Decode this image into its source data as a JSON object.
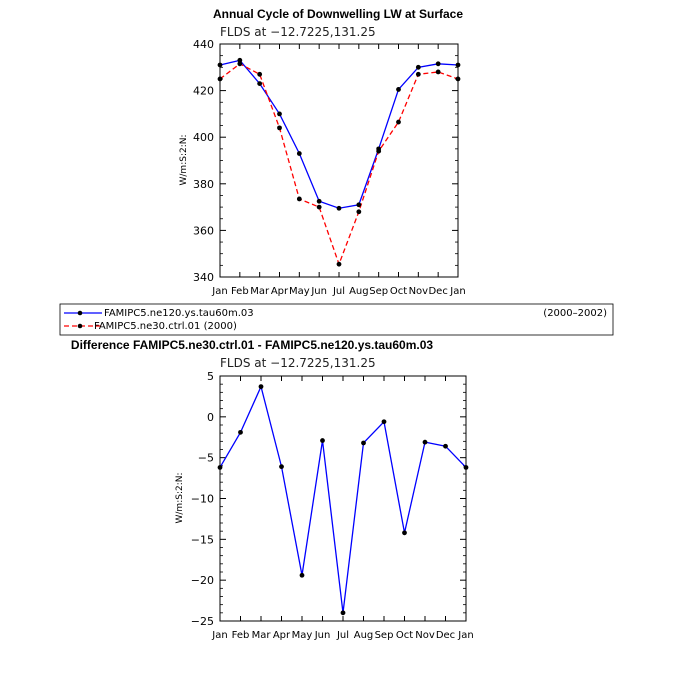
{
  "chart_data": [
    {
      "type": "line",
      "title": "Annual Cycle of Downwelling LW at Surface",
      "subtitle": "FLDS at −12.7225,131.25",
      "ylabel": "W/m:S:2:N:",
      "xlabel": "",
      "ylim": [
        340,
        440
      ],
      "yticks": [
        340,
        360,
        380,
        400,
        420,
        440
      ],
      "categories": [
        "Jan",
        "Feb",
        "Mar",
        "Apr",
        "May",
        "Jun",
        "Jul",
        "Aug",
        "Sep",
        "Oct",
        "Nov",
        "Dec",
        "Jan"
      ],
      "series": [
        {
          "name": "FAMIPC5.ne120.ys.tau60m.03",
          "color": "#0000ff",
          "dash": "solid",
          "values": [
            431,
            433,
            423,
            410,
            393,
            372.5,
            369.5,
            371,
            395,
            420.5,
            430,
            431.5,
            431
          ]
        },
        {
          "name": "FAMIPC5.ne30.ctrl.01",
          "color": "#ff0000",
          "dash": "dashed",
          "values": [
            425,
            431.5,
            427,
            404,
            373.5,
            370,
            345.5,
            368,
            394,
            406.5,
            427,
            428,
            425
          ]
        }
      ],
      "legend": {
        "placement": "below",
        "entries": [
          {
            "label": "FAMIPC5.ne120.ys.tau60m.03",
            "period": "(2000–2002)"
          },
          {
            "label": "FAMIPC5.ne30.ctrl.01 (2000)"
          }
        ]
      }
    },
    {
      "type": "line",
      "title": "Difference FAMIPC5.ne30.ctrl.01 - FAMIPC5.ne120.ys.tau60m.03",
      "subtitle": "FLDS at −12.7225,131.25",
      "ylabel": "W/m:S:2:N:",
      "xlabel": "",
      "ylim": [
        -25,
        5
      ],
      "yticks": [
        -25,
        -20,
        -15,
        -10,
        -5,
        0,
        5
      ],
      "categories": [
        "Jan",
        "Feb",
        "Mar",
        "Apr",
        "May",
        "Jun",
        "Jul",
        "Aug",
        "Sep",
        "Oct",
        "Nov",
        "Dec",
        "Jan"
      ],
      "series": [
        {
          "name": "Difference",
          "color": "#0000ff",
          "dash": "solid",
          "values": [
            -6.2,
            -1.9,
            3.7,
            -6.1,
            -19.4,
            -2.9,
            -24.0,
            -3.2,
            -0.6,
            -14.2,
            -3.1,
            -3.6,
            -6.2
          ]
        }
      ]
    }
  ]
}
